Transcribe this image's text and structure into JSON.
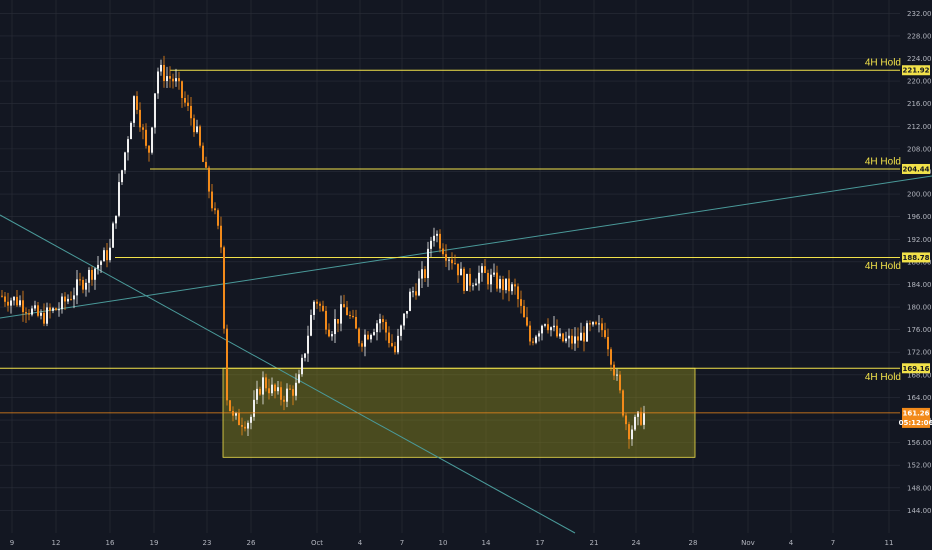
{
  "theme": {
    "background": "#131722",
    "grid": "#2a2e39",
    "axis_text": "#b2b5be",
    "candle_up": "#f0f0f0",
    "candle_down": "#f28a1a",
    "zone_line": "#f2e24a",
    "zone_fill": "#8f8b1c",
    "trendline": "#4a9a9a",
    "price_line": "#f28a1a"
  },
  "chart_data": {
    "type": "candlestick",
    "ylim": [
      140,
      234
    ],
    "y_ticks": [
      "144.00",
      "148.00",
      "152.00",
      "156.00",
      "160.00",
      "164.00",
      "168.00",
      "172.00",
      "176.00",
      "180.00",
      "184.00",
      "188.00",
      "192.00",
      "196.00",
      "200.00",
      "204.00",
      "208.00",
      "212.00",
      "216.00",
      "220.00",
      "224.00",
      "228.00",
      "232.00"
    ],
    "x_ticks": [
      "9",
      "12",
      "16",
      "19",
      "23",
      "26",
      "Oct",
      "4",
      "7",
      "10",
      "14",
      "17",
      "21",
      "24",
      "28",
      "Nov",
      "4",
      "7",
      "11"
    ],
    "grid": true,
    "series": [
      {
        "x": [
          "9",
          "12",
          "16",
          "19",
          "23",
          "26",
          "Oct",
          "4",
          "7",
          "10",
          "14",
          "17",
          "21",
          "24"
        ],
        "close": [
          182.5,
          181.0,
          190.5,
          220.0,
          200.0,
          160.5,
          181.0,
          176.0,
          175.0,
          193.0,
          186.0,
          178.0,
          174.0,
          161.3
        ]
      }
    ],
    "levels": [
      {
        "label": "4H Hold",
        "price": 221.92,
        "badge": "221.92"
      },
      {
        "label": "4H Hold",
        "price": 204.44,
        "badge": "204.44"
      },
      {
        "label": "4H Hold",
        "price": 188.78,
        "badge": "188.78"
      },
      {
        "label": "4H Hold",
        "price": 169.16,
        "badge": "169.16"
      }
    ],
    "zone": {
      "top": 169.16,
      "bottom": 153.4
    },
    "current_price": {
      "price": 161.26,
      "badge": "161.26",
      "countdown": "05:12:06"
    }
  }
}
